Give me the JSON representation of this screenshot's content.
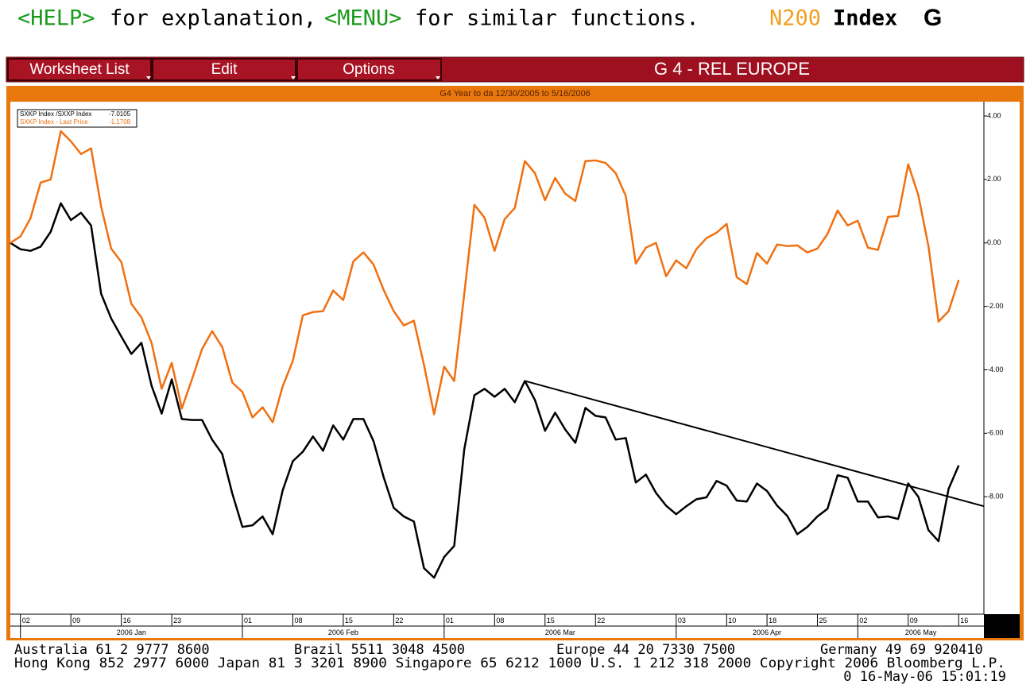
{
  "header": {
    "help_key": "<HELP>",
    "help_text": "for explanation,",
    "menu_key": "<MENU>",
    "menu_text": "for similar functions.",
    "ticker": "N200",
    "market": "Index",
    "function": "G"
  },
  "menu": {
    "items": [
      "Worksheet List",
      "Edit",
      "Options"
    ],
    "title": "G 4 - REL EUROPE"
  },
  "chart_data": {
    "type": "line",
    "title": "G4 Year to da 12/30/2005 to 5/16/2006",
    "x": [
      0,
      1,
      2,
      3,
      4,
      5,
      6,
      7,
      8,
      9,
      10,
      11,
      12,
      13,
      14,
      15,
      16,
      17,
      18,
      19,
      20,
      21,
      22,
      23,
      24,
      25,
      26,
      27,
      28,
      29,
      30,
      31,
      32,
      33,
      34,
      35,
      36,
      37,
      38,
      39,
      40,
      41,
      42,
      43,
      44,
      45,
      46,
      47,
      48,
      49,
      50,
      51,
      52,
      53,
      54,
      55,
      56,
      57,
      58,
      59,
      60,
      61,
      62,
      63,
      64,
      65,
      66,
      67,
      68,
      69,
      70,
      71,
      72,
      73,
      74,
      75,
      76,
      77,
      78,
      79,
      80,
      81,
      82,
      83,
      84,
      85,
      86,
      87,
      88,
      89,
      90,
      91,
      92,
      93,
      94
    ],
    "series": [
      {
        "name": "SXKP Index /SXXP Index",
        "last": -7.0105,
        "color": "#000000",
        "values": [
          0,
          -0.2,
          -0.25,
          -0.12,
          0.35,
          1.25,
          0.72,
          0.95,
          0.55,
          -1.6,
          -2.38,
          -2.95,
          -3.5,
          -3.15,
          -4.5,
          -5.38,
          -4.3,
          -5.55,
          -5.58,
          -5.58,
          -6.2,
          -6.65,
          -7.9,
          -8.95,
          -8.9,
          -8.62,
          -9.18,
          -7.8,
          -6.88,
          -6.58,
          -6.1,
          -6.55,
          -5.75,
          -6.2,
          -5.55,
          -5.55,
          -6.25,
          -7.38,
          -8.35,
          -8.62,
          -8.78,
          -10.25,
          -10.55,
          -9.9,
          -9.55,
          -6.5,
          -4.8,
          -4.6,
          -4.85,
          -4.6,
          -5.02,
          -4.35,
          -4.95,
          -5.92,
          -5.35,
          -5.88,
          -6.3,
          -5.2,
          -5.45,
          -5.5,
          -6.2,
          -6.15,
          -7.55,
          -7.3,
          -7.88,
          -8.28,
          -8.55,
          -8.3,
          -8.08,
          -8.02,
          -7.5,
          -7.65,
          -8.12,
          -8.15,
          -7.58,
          -7.82,
          -8.28,
          -8.6,
          -9.18,
          -8.95,
          -8.62,
          -8.38,
          -7.32,
          -7.4,
          -8.15,
          -8.15,
          -8.65,
          -8.62,
          -8.7,
          -7.58,
          -8.0,
          -9.05,
          -9.4,
          -7.75,
          -7.0105
        ]
      },
      {
        "name": "SXKP Index - Last Price",
        "last": -1.1708,
        "color": "#f07010",
        "values": [
          0,
          0.2,
          0.78,
          1.9,
          2.0,
          3.52,
          3.2,
          2.8,
          2.98,
          1.15,
          -0.18,
          -0.6,
          -1.92,
          -2.35,
          -3.15,
          -4.6,
          -3.78,
          -5.22,
          -4.3,
          -3.35,
          -2.78,
          -3.28,
          -4.4,
          -4.7,
          -5.5,
          -5.18,
          -5.65,
          -4.52,
          -3.72,
          -2.28,
          -2.18,
          -2.15,
          -1.5,
          -1.8,
          -0.58,
          -0.3,
          -0.68,
          -1.48,
          -2.15,
          -2.6,
          -2.45,
          -3.85,
          -5.4,
          -3.9,
          -4.35,
          -1.6,
          1.2,
          0.8,
          -0.25,
          0.75,
          1.1,
          2.58,
          2.2,
          1.35,
          2.05,
          1.55,
          1.32,
          2.58,
          2.6,
          2.52,
          2.2,
          1.48,
          -0.65,
          -0.15,
          0.0,
          -1.05,
          -0.55,
          -0.8,
          -0.2,
          0.15,
          0.32,
          0.6,
          -1.08,
          -1.3,
          -0.32,
          -0.65,
          -0.05,
          -0.1,
          -0.08,
          -0.3,
          -0.18,
          0.28,
          1.02,
          0.55,
          0.7,
          -0.15,
          -0.22,
          0.82,
          0.85,
          2.48,
          1.5,
          -0.1,
          -2.48,
          -2.15,
          -1.1708
        ]
      }
    ],
    "trendline": {
      "x": [
        51,
        96.5
      ],
      "y": [
        -4.35,
        -8.3
      ]
    },
    "xlim": [
      0,
      96.5
    ],
    "xticks": [
      {
        "value": 1,
        "label": "02"
      },
      {
        "value": 6,
        "label": "09"
      },
      {
        "value": 11,
        "label": "16"
      },
      {
        "value": 16,
        "label": "23"
      },
      {
        "value": 23,
        "label": "01"
      },
      {
        "value": 28,
        "label": "08"
      },
      {
        "value": 33,
        "label": "15"
      },
      {
        "value": 38,
        "label": "22"
      },
      {
        "value": 43,
        "label": "01"
      },
      {
        "value": 48,
        "label": "08"
      },
      {
        "value": 53,
        "label": "15"
      },
      {
        "value": 58,
        "label": "22"
      },
      {
        "value": 66,
        "label": "03"
      },
      {
        "value": 71,
        "label": "10"
      },
      {
        "value": 75,
        "label": "18"
      },
      {
        "value": 80,
        "label": "25"
      },
      {
        "value": 84,
        "label": "02"
      },
      {
        "value": 89,
        "label": "09"
      },
      {
        "value": 94,
        "label": "16"
      }
    ],
    "month_ticks": [
      {
        "value": 1,
        "label": "2006 Jan"
      },
      {
        "value": 23,
        "label": "2006 Feb"
      },
      {
        "value": 43,
        "label": "2006 Mar"
      },
      {
        "value": 66,
        "label": "2006 Apr"
      },
      {
        "value": 84,
        "label": "2006 May"
      }
    ],
    "ylim": [
      -11.7,
      4.45
    ],
    "yticks": [
      {
        "value": 4,
        "label": "4.00"
      },
      {
        "value": 2,
        "label": "2.00"
      },
      {
        "value": 0,
        "label": "0.00"
      },
      {
        "value": -2,
        "label": "-2.00"
      },
      {
        "value": -4,
        "label": "-4.00"
      },
      {
        "value": -6,
        "label": "-6.00"
      },
      {
        "value": -8,
        "label": "-8.00"
      }
    ],
    "y_axis_side": "right"
  },
  "footer": {
    "line1": [
      "Australia 61 2 9777 8600",
      "Brazil 5511 3048 4500",
      "Europe 44 20 7330 7500",
      "Germany 49 69 920410"
    ],
    "line2": "Hong Kong 852 2977 6000 Japan 81 3 3201 8900 Singapore 65 6212 1000 U.S. 1 212 318 2000 Copyright 2006 Bloomberg L.P.",
    "line3": "0 16-May-06 15:01:19"
  }
}
